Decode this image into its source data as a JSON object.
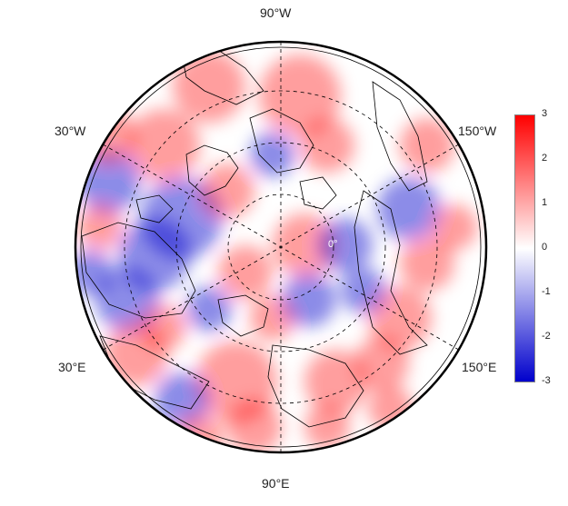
{
  "map": {
    "projection": "north-polar-stereographic",
    "longitude_labels": {
      "top": "90°W",
      "bottom": "90°E",
      "upper_left": "30°W",
      "upper_right": "150°W",
      "lower_left": "30°E",
      "lower_right": "150°E"
    },
    "inner_label": "0°",
    "anomaly_colors": {
      "positive": "#ff0000",
      "zero": "#ffffff",
      "negative": "#0000cc"
    }
  },
  "colorbar": {
    "min": -3,
    "max": 3,
    "tick_labels": [
      "3",
      "2",
      "1",
      "0",
      "-1",
      "-2",
      "-3"
    ]
  }
}
